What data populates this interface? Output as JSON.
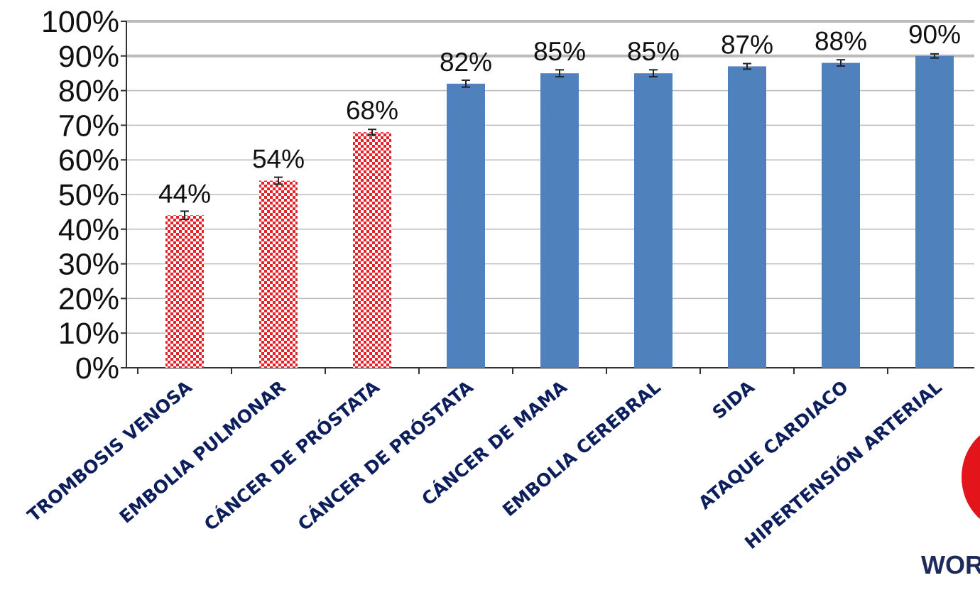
{
  "chart_data": {
    "type": "bar",
    "categories": [
      "TROMBOSIS VENOSA",
      "EMBOLIA PULMONAR",
      "CÁNCER DE PRÓSTATA",
      "CÁNCER DE PRÓSTATA",
      "CÁNCER DE MAMA",
      "EMBOLIA CEREBRAL",
      "SIDA",
      "ATAQUE CARDIACO",
      "HIPERTENSIÓN ARTERIAL"
    ],
    "values": [
      44,
      54,
      68,
      82,
      85,
      85,
      87,
      88,
      90
    ],
    "value_labels": [
      "44%",
      "54%",
      "68%",
      "82%",
      "85%",
      "85%",
      "87%",
      "88%",
      "90%"
    ],
    "error_bars": [
      1.2,
      1.0,
      0.8,
      1.0,
      1.0,
      1.0,
      0.8,
      0.9,
      0.6
    ],
    "highlight": [
      true,
      true,
      true,
      false,
      false,
      false,
      false,
      false,
      false
    ],
    "ylim": [
      0,
      100
    ],
    "yticks": [
      "0%",
      "10%",
      "20%",
      "30%",
      "40%",
      "50%",
      "60%",
      "70%",
      "80%",
      "90%",
      "100%"
    ],
    "grid": true,
    "colors": {
      "bar": "#4f81bd",
      "highlight": "#e8202a",
      "label_text": "#0c1f5c",
      "grid": "#bbbbbb"
    }
  },
  "logo": {
    "text": "WOR",
    "color": "#e3151a"
  }
}
